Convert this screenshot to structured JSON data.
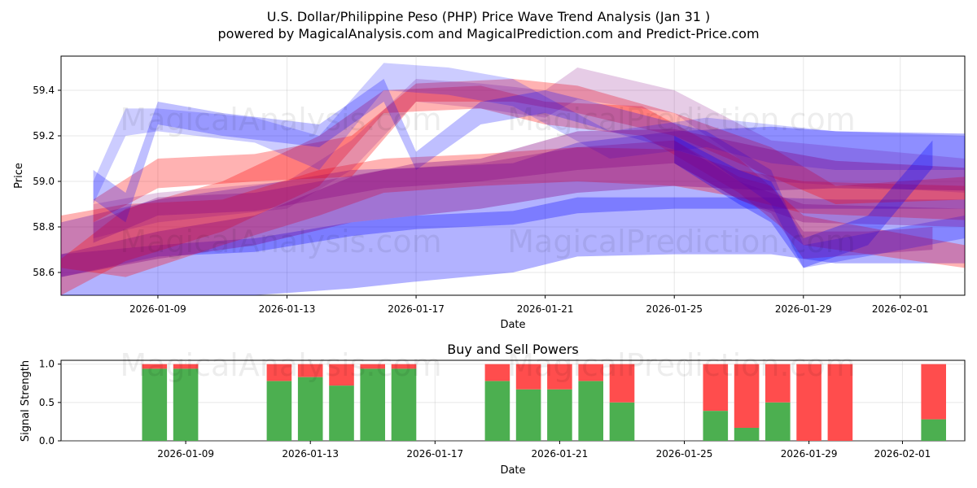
{
  "title_line1": "U.S. Dollar/Philippine Peso (PHP) Price Wave Trend Analysis (Jan 31 )",
  "title_line2": "powered by MagicalAnalysis.com and MagicalPrediction.com and Predict-Price.com",
  "watermarks": [
    "MagicalAnalysis.com",
    "MagicalPrediction.com"
  ],
  "colors": {
    "blue": "#0000ff",
    "red": "#ff0000",
    "purple": "#800080",
    "green": "#4caf50",
    "sell": "#ff4d4d"
  },
  "chart_data": [
    {
      "type": "area",
      "title": "",
      "xlabel": "Date",
      "ylabel": "Price",
      "xlim": [
        "2026-01-06",
        "2026-02-03"
      ],
      "ylim": [
        58.5,
        59.55
      ],
      "grid": true,
      "x_ticks": [
        "2026-01-09",
        "2026-01-13",
        "2026-01-17",
        "2026-01-21",
        "2026-01-25",
        "2026-01-29",
        "2026-02-01"
      ],
      "y_ticks": [
        58.6,
        58.8,
        59.0,
        59.2,
        59.4
      ],
      "series": [
        {
          "name": "wave-band-blue-lower",
          "color": "blue",
          "opacity": 0.3,
          "x": [
            "2026-01-06",
            "2026-01-09",
            "2026-01-12",
            "2026-01-15",
            "2026-01-17",
            "2026-01-20",
            "2026-01-22",
            "2026-01-25",
            "2026-01-28",
            "2026-01-30",
            "2026-02-03"
          ],
          "upper": [
            58.82,
            58.92,
            58.98,
            59.05,
            59.06,
            59.08,
            59.17,
            59.22,
            59.24,
            59.22,
            59.21
          ],
          "lower": [
            58.45,
            58.47,
            58.5,
            58.53,
            58.56,
            58.6,
            58.67,
            58.68,
            58.68,
            58.64,
            58.64
          ]
        },
        {
          "name": "wave-band-blue-mid",
          "color": "blue",
          "opacity": 0.3,
          "x": [
            "2026-01-06",
            "2026-01-09",
            "2026-01-12",
            "2026-01-15",
            "2026-01-17",
            "2026-01-20",
            "2026-01-22",
            "2026-01-25",
            "2026-01-28",
            "2026-01-30",
            "2026-02-03"
          ],
          "upper": [
            58.68,
            58.72,
            58.75,
            58.82,
            58.85,
            58.87,
            58.93,
            58.93,
            58.93,
            58.92,
            58.92
          ],
          "lower": [
            58.58,
            58.67,
            58.69,
            58.76,
            58.79,
            58.81,
            58.86,
            58.88,
            58.88,
            58.88,
            58.88
          ]
        },
        {
          "name": "wave-band-red-1",
          "color": "red",
          "opacity": 0.3,
          "x": [
            "2026-01-06",
            "2026-01-08",
            "2026-01-11",
            "2026-01-14",
            "2026-01-16",
            "2026-01-19",
            "2026-01-22",
            "2026-01-25",
            "2026-01-27",
            "2026-01-29",
            "2026-02-03"
          ],
          "upper": [
            58.85,
            58.9,
            58.92,
            59.05,
            59.1,
            59.12,
            59.15,
            59.14,
            59.05,
            59.0,
            58.98
          ],
          "lower": [
            58.62,
            58.58,
            58.72,
            58.85,
            58.95,
            58.98,
            59.0,
            58.98,
            58.93,
            58.86,
            58.83
          ]
        },
        {
          "name": "wave-band-red-2",
          "color": "red",
          "opacity": 0.3,
          "x": [
            "2026-01-06",
            "2026-01-08",
            "2026-01-11",
            "2026-01-14",
            "2026-01-16",
            "2026-01-19",
            "2026-01-21",
            "2026-01-24",
            "2026-01-27",
            "2026-01-29",
            "2026-02-03"
          ],
          "upper": [
            58.66,
            58.88,
            59.0,
            59.2,
            59.4,
            59.42,
            59.35,
            59.33,
            59.1,
            58.85,
            58.72
          ],
          "lower": [
            58.5,
            58.65,
            58.78,
            58.98,
            59.3,
            59.32,
            59.25,
            59.2,
            58.95,
            58.72,
            58.62
          ]
        },
        {
          "name": "wave-band-red-3",
          "color": "red",
          "opacity": 0.3,
          "x": [
            "2026-01-07",
            "2026-01-09",
            "2026-01-12",
            "2026-01-15",
            "2026-01-17",
            "2026-01-20",
            "2026-01-22",
            "2026-01-25",
            "2026-01-28",
            "2026-01-30",
            "2026-02-03"
          ],
          "upper": [
            58.92,
            59.1,
            59.12,
            59.2,
            59.43,
            59.45,
            59.42,
            59.3,
            59.15,
            58.98,
            59.02
          ],
          "lower": [
            58.82,
            58.97,
            59.0,
            59.02,
            59.35,
            59.35,
            59.3,
            59.2,
            59.02,
            58.9,
            58.92
          ]
        },
        {
          "name": "wave-band-purple-1",
          "color": "purple",
          "opacity": 0.2,
          "x": [
            "2026-01-07",
            "2026-01-09",
            "2026-01-13",
            "2026-01-15",
            "2026-01-17",
            "2026-01-19",
            "2026-01-21",
            "2026-01-22",
            "2026-01-25",
            "2026-01-28",
            "2026-02-03"
          ],
          "upper": [
            58.9,
            58.95,
            59.0,
            59.18,
            59.45,
            59.43,
            59.4,
            59.5,
            59.4,
            59.18,
            59.1
          ],
          "lower": [
            58.75,
            58.82,
            58.88,
            59.05,
            59.35,
            59.32,
            59.28,
            59.36,
            59.3,
            59.0,
            58.95
          ]
        },
        {
          "name": "wave-band-blue-upper-1",
          "color": "blue",
          "opacity": 0.2,
          "x": [
            "2026-01-07",
            "2026-01-08",
            "2026-01-09",
            "2026-01-12",
            "2026-01-14",
            "2026-01-16",
            "2026-01-18",
            "2026-01-20",
            "2026-01-23",
            "2026-01-26",
            "2026-01-28",
            "2026-01-30",
            "2026-02-03"
          ],
          "upper": [
            59.0,
            59.32,
            59.32,
            59.28,
            59.2,
            59.52,
            59.5,
            59.45,
            59.22,
            59.28,
            59.25,
            59.22,
            59.2
          ],
          "lower": [
            58.9,
            59.2,
            59.22,
            59.17,
            59.05,
            59.4,
            59.38,
            59.33,
            59.1,
            59.15,
            59.08,
            59.05,
            59.05
          ]
        },
        {
          "name": "wave-band-blue-upper-2",
          "color": "blue",
          "opacity": 0.25,
          "x": [
            "2026-01-07",
            "2026-01-08",
            "2026-01-09",
            "2026-01-11",
            "2026-01-14",
            "2026-01-16",
            "2026-01-17",
            "2026-01-19",
            "2026-01-21",
            "2026-01-23",
            "2026-01-26",
            "2026-01-28",
            "2026-01-29",
            "2026-02-03"
          ],
          "upper": [
            59.05,
            58.95,
            59.35,
            59.3,
            59.25,
            59.45,
            59.13,
            59.35,
            59.4,
            59.33,
            59.22,
            59.05,
            58.72,
            58.85
          ],
          "lower": [
            58.92,
            58.82,
            59.25,
            59.2,
            59.15,
            59.35,
            59.05,
            59.25,
            59.3,
            59.22,
            59.1,
            58.9,
            58.62,
            58.75
          ]
        },
        {
          "name": "wave-band-purple-main",
          "color": "purple",
          "opacity": 0.35,
          "x": [
            "2026-01-06",
            "2026-01-09",
            "2026-01-12",
            "2026-01-15",
            "2026-01-17",
            "2026-01-19",
            "2026-01-22",
            "2026-01-25",
            "2026-01-28",
            "2026-01-30",
            "2026-02-03"
          ],
          "upper": [
            58.68,
            58.78,
            58.85,
            59.02,
            59.08,
            59.1,
            59.22,
            59.23,
            59.14,
            59.09,
            59.06
          ],
          "lower": [
            58.58,
            58.66,
            58.72,
            58.82,
            58.85,
            58.88,
            58.95,
            58.98,
            58.96,
            58.97,
            58.96
          ]
        },
        {
          "name": "wave-band-purple-2",
          "color": "purple",
          "opacity": 0.3,
          "x": [
            "2026-01-07",
            "2026-01-09",
            "2026-01-12",
            "2026-01-14",
            "2026-01-16",
            "2026-01-19",
            "2026-01-22",
            "2026-01-25",
            "2026-01-27",
            "2026-01-29",
            "2026-02-03"
          ],
          "upper": [
            58.82,
            58.93,
            58.95,
            59.0,
            59.05,
            59.08,
            59.15,
            59.18,
            59.0,
            58.9,
            58.88
          ],
          "lower": [
            58.73,
            58.85,
            58.87,
            58.92,
            58.97,
            59.0,
            59.05,
            59.08,
            58.92,
            58.82,
            58.8
          ]
        },
        {
          "name": "wave-band-blue-tail",
          "color": "blue",
          "opacity": 0.3,
          "x": [
            "2026-01-25",
            "2026-01-27",
            "2026-01-28",
            "2026-01-29",
            "2026-01-31",
            "2026-02-02"
          ],
          "upper": [
            59.2,
            59.05,
            59.0,
            58.75,
            58.85,
            59.18
          ],
          "lower": [
            59.08,
            58.9,
            58.82,
            58.62,
            58.72,
            59.06
          ]
        },
        {
          "name": "wave-band-purple-tail",
          "color": "purple",
          "opacity": 0.3,
          "x": [
            "2026-01-25",
            "2026-01-27",
            "2026-01-28",
            "2026-01-29",
            "2026-01-31",
            "2026-02-02"
          ],
          "upper": [
            59.18,
            59.02,
            58.98,
            58.78,
            58.78,
            58.8
          ],
          "lower": [
            59.08,
            58.92,
            58.86,
            58.66,
            58.68,
            58.7
          ]
        }
      ]
    },
    {
      "type": "bar",
      "title": "Buy and Sell Powers",
      "xlabel": "Date",
      "ylabel": "Signal Strength",
      "ylim": [
        0,
        1.05
      ],
      "grid": true,
      "x_ticks": [
        "2026-01-09",
        "2026-01-13",
        "2026-01-17",
        "2026-01-21",
        "2026-01-25",
        "2026-01-29",
        "2026-02-01"
      ],
      "y_ticks": [
        "0.0",
        "0.5",
        "1.0"
      ],
      "series": [
        {
          "name": "Buy",
          "color": "green"
        },
        {
          "name": "Sell",
          "color": "sell"
        }
      ],
      "bars": [
        {
          "date": "2026-01-08",
          "buy": 0.94
        },
        {
          "date": "2026-01-09",
          "buy": 0.94
        },
        {
          "date": "2026-01-12",
          "buy": 0.78
        },
        {
          "date": "2026-01-13",
          "buy": 0.83
        },
        {
          "date": "2026-01-14",
          "buy": 0.72
        },
        {
          "date": "2026-01-15",
          "buy": 0.94
        },
        {
          "date": "2026-01-16",
          "buy": 0.94
        },
        {
          "date": "2026-01-19",
          "buy": 0.78
        },
        {
          "date": "2026-01-20",
          "buy": 0.67
        },
        {
          "date": "2026-01-21",
          "buy": 0.67
        },
        {
          "date": "2026-01-22",
          "buy": 0.78
        },
        {
          "date": "2026-01-23",
          "buy": 0.5
        },
        {
          "date": "2026-01-26",
          "buy": 0.39
        },
        {
          "date": "2026-01-27",
          "buy": 0.17
        },
        {
          "date": "2026-01-28",
          "buy": 0.5
        },
        {
          "date": "2026-01-29",
          "buy": 0.0
        },
        {
          "date": "2026-01-30",
          "buy": 0.0
        },
        {
          "date": "2026-02-02",
          "buy": 0.28
        }
      ]
    }
  ]
}
